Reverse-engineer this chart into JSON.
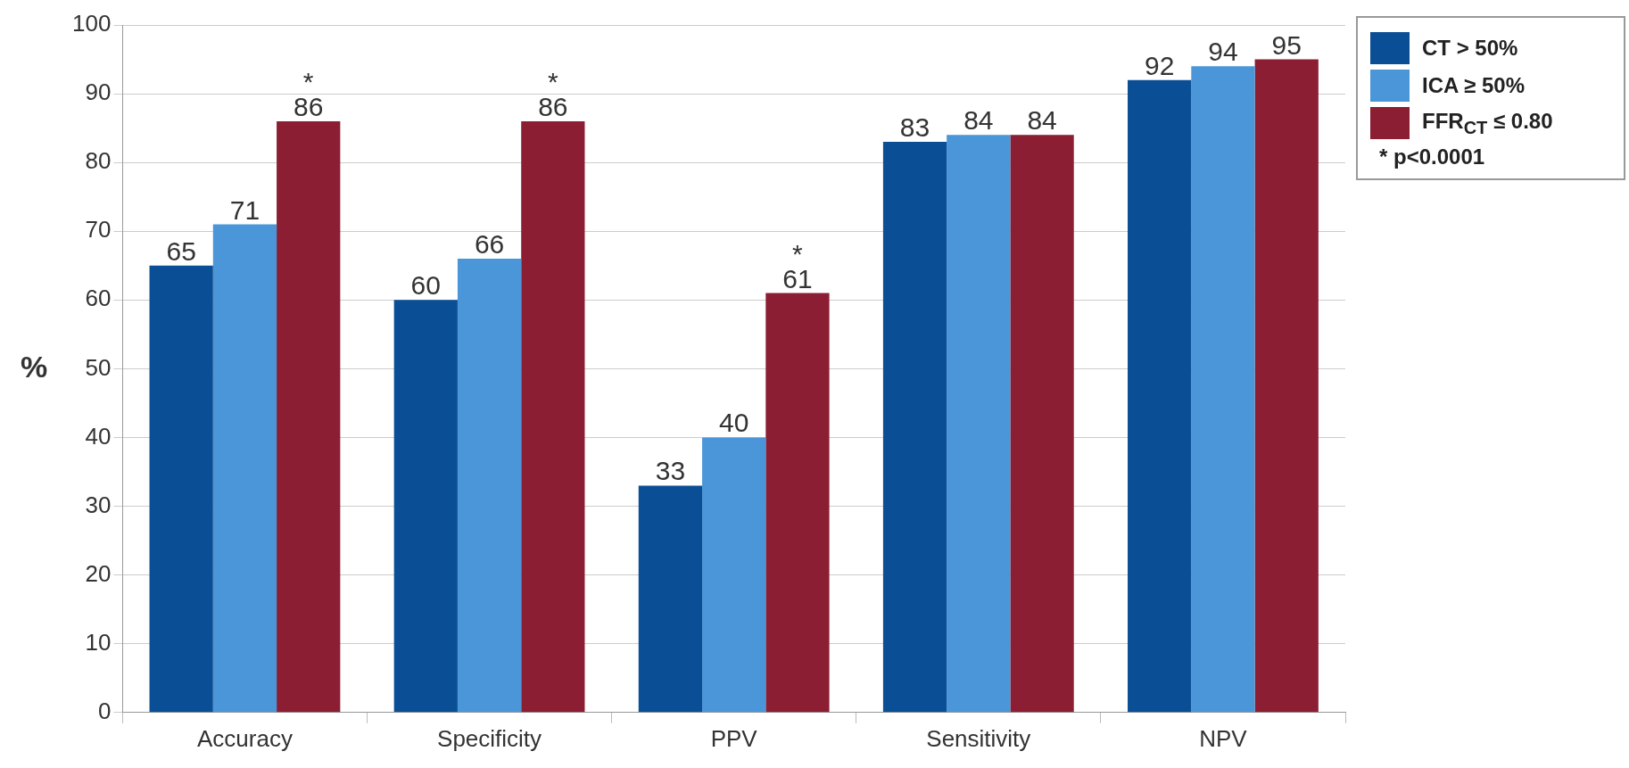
{
  "chart_data": {
    "type": "bar",
    "ylabel": "%",
    "categories": [
      "Accuracy",
      "Specificity",
      "PPV",
      "Sensitivity",
      "NPV"
    ],
    "series": [
      {
        "name": "CT > 50%",
        "color": "#0a4f96",
        "values": [
          65,
          60,
          33,
          83,
          92
        ],
        "value_labels": [
          "65",
          "60",
          "33",
          "83",
          "92"
        ]
      },
      {
        "name": "ICA ≥ 50%",
        "color": "#4a96d8",
        "values": [
          71,
          66,
          40,
          84,
          94
        ],
        "value_labels": [
          "71",
          "66",
          "40",
          "84",
          "94"
        ]
      },
      {
        "name": "FFR$_{CT}$ ≤ 0.80",
        "color": "#8b1e32",
        "values": [
          86,
          86,
          61,
          84,
          95
        ],
        "value_labels": [
          "*\n86",
          "*\n86",
          "*\n61",
          "84",
          "95"
        ]
      }
    ],
    "ylim": [
      0,
      100
    ],
    "yticks": [
      0,
      10,
      20,
      30,
      40,
      50,
      60,
      70,
      80,
      90,
      100
    ],
    "grid": "y",
    "legend": "top right",
    "annotations": [
      "* p<0.0001"
    ]
  }
}
